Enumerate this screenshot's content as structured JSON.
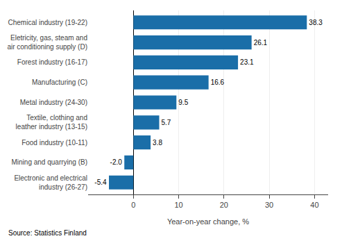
{
  "chart_data": {
    "type": "bar",
    "orientation": "horizontal",
    "categories": [
      "Electronic and electrical\nindustry (26-27)",
      "Mining and quarrying (B)",
      "Food industry (10-11)",
      "Textile, clothing and\nleather industry (13-15)",
      "Metal industry (24-30)",
      "Manufacturing (C)",
      "Forest industry (16-17)",
      "Eletricity, gas, steam and\nair conditioning supply (D)",
      "Chemical industry (19-22)"
    ],
    "values": [
      -5.4,
      -2.0,
      3.8,
      5.7,
      9.5,
      16.6,
      23.1,
      26.1,
      38.3
    ],
    "value_labels": [
      "-5.4",
      "-2.0",
      "3.8",
      "5.7",
      "9.5",
      "16.6",
      "23.1",
      "26.1",
      "38.3"
    ],
    "data_labels": true,
    "color": "#1a6ea8",
    "xlabel": "Year-on-year change, %",
    "annotations": [
      "Source: Statistics Finland"
    ],
    "xlim": [
      -10,
      43
    ],
    "xticks": [
      0,
      10,
      20,
      30,
      40
    ],
    "grid": true
  }
}
